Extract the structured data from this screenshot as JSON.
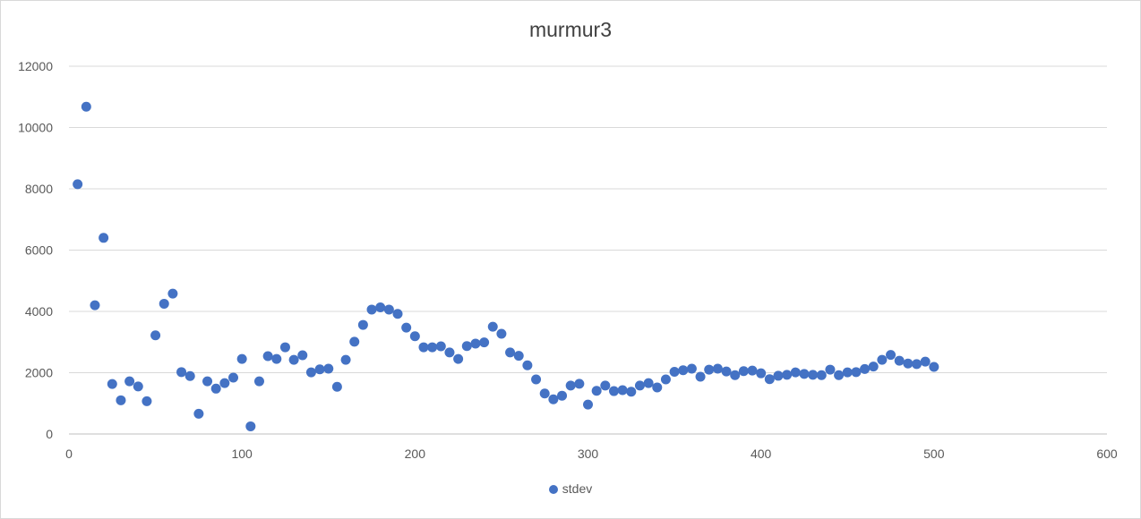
{
  "chart_data": {
    "type": "scatter",
    "title": "murmur3",
    "xlabel": "",
    "ylabel": "",
    "xlim": [
      0,
      600
    ],
    "ylim": [
      0,
      12000
    ],
    "x_ticks": [
      "0",
      "100",
      "200",
      "300",
      "400",
      "500",
      "600"
    ],
    "y_ticks": [
      "0",
      "2000",
      "4000",
      "6000",
      "8000",
      "10000",
      "12000"
    ],
    "grid": "horizontal",
    "legend_position": "bottom",
    "marker_color": "#4472c4",
    "series": [
      {
        "name": "stdev",
        "x": [
          5,
          10,
          15,
          20,
          25,
          30,
          35,
          40,
          45,
          50,
          55,
          60,
          65,
          70,
          75,
          80,
          85,
          90,
          95,
          100,
          105,
          110,
          115,
          120,
          125,
          130,
          135,
          140,
          145,
          150,
          155,
          160,
          165,
          170,
          175,
          180,
          185,
          190,
          195,
          200,
          205,
          210,
          215,
          220,
          225,
          230,
          235,
          240,
          245,
          250,
          255,
          260,
          265,
          270,
          275,
          280,
          285,
          290,
          295,
          300,
          305,
          310,
          315,
          320,
          325,
          330,
          335,
          340,
          345,
          350,
          355,
          360,
          365,
          370,
          375,
          380,
          385,
          390,
          395,
          400,
          405,
          410,
          415,
          420,
          425,
          430,
          435,
          440,
          445,
          450,
          455,
          460,
          465,
          470,
          475,
          480,
          485,
          490,
          495,
          500
        ],
        "y": [
          8150,
          10680,
          4200,
          6400,
          1630,
          1100,
          1720,
          1550,
          1070,
          3220,
          4250,
          4580,
          2020,
          1890,
          660,
          1720,
          1480,
          1660,
          1840,
          2450,
          250,
          1720,
          2540,
          2450,
          2830,
          2420,
          2570,
          2010,
          2110,
          2130,
          1540,
          2420,
          3010,
          3560,
          4060,
          4130,
          4060,
          3920,
          3470,
          3190,
          2830,
          2830,
          2860,
          2660,
          2450,
          2870,
          2950,
          2990,
          3500,
          3270,
          2660,
          2550,
          2240,
          1780,
          1320,
          1130,
          1250,
          1580,
          1640,
          960,
          1410,
          1580,
          1400,
          1430,
          1380,
          1580,
          1660,
          1520,
          1780,
          2030,
          2080,
          2130,
          1870,
          2100,
          2130,
          2040,
          1920,
          2050,
          2070,
          1980,
          1790,
          1900,
          1930,
          2010,
          1960,
          1930,
          1920,
          2100,
          1920,
          2010,
          2020,
          2120,
          2200,
          2420,
          2580,
          2390,
          2300,
          2280,
          2360,
          2190
        ]
      }
    ]
  }
}
